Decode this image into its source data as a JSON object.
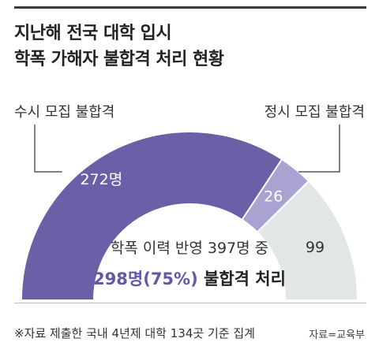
{
  "title": {
    "line1": "지난해 전국 대학 입시",
    "line2": "학폭 가해자 불합격 처리 현황"
  },
  "colors": {
    "susi": "#6b5fa8",
    "jeongsi": "#aaa2d0",
    "rest": "#e3e6e6",
    "highlight": "#6358a8"
  },
  "chart_data": {
    "type": "pie",
    "subtype": "half-donut",
    "title": "지난해 전국 대학 입시 학폭 가해자 불합격 처리 현황",
    "total": 397,
    "slices": [
      {
        "key": "susi",
        "label": "수시 모집 불합격",
        "value": 272,
        "value_label": "272명"
      },
      {
        "key": "jeongsi",
        "label": "정시 모집 불합격",
        "value": 26,
        "value_label": "26"
      },
      {
        "key": "rest",
        "label": "",
        "value": 99,
        "value_label": "99"
      }
    ],
    "annotation": {
      "line1": "학폭 이력 반영 397명 중",
      "highlight": "298명(75%)",
      "line2_rest": " 불합격 처리"
    }
  },
  "footer": {
    "note": "※자료 제출한 국내 4년제 대학 134곳 기준 집계",
    "source": "자료=교육부"
  }
}
